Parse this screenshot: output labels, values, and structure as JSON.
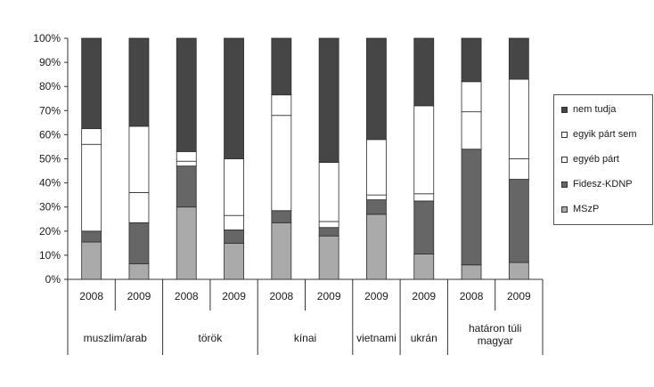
{
  "chart_data": {
    "type": "bar",
    "stacked": true,
    "ylim": [
      0,
      100
    ],
    "yticks": [
      "0%",
      "10%",
      "20%",
      "30%",
      "40%",
      "50%",
      "60%",
      "70%",
      "80%",
      "90%",
      "100%"
    ],
    "grid": false,
    "legend_position": "right",
    "groups": [
      {
        "name": "muszlim/arab",
        "years": [
          "2008",
          "2009"
        ]
      },
      {
        "name": "török",
        "years": [
          "2008",
          "2009"
        ]
      },
      {
        "name": "kínai",
        "years": [
          "2008",
          "2009"
        ]
      },
      {
        "name": "vietnami",
        "years": [
          "2009"
        ]
      },
      {
        "name": "ukrán",
        "years": [
          "2009"
        ]
      },
      {
        "name": "határon túli magyar",
        "years": [
          "2008",
          "2009"
        ]
      }
    ],
    "categories": [
      "2008",
      "2009",
      "2008",
      "2009",
      "2008",
      "2009",
      "2009",
      "2009",
      "2008",
      "2009"
    ],
    "series": [
      {
        "name": "MSzP",
        "color": "#aaaaaa",
        "values": [
          15.5,
          6.5,
          30,
          15,
          23.5,
          18,
          27,
          10.5,
          6,
          7
        ]
      },
      {
        "name": "Fidesz-KDNP",
        "color": "#666666",
        "values": [
          4.5,
          17,
          17,
          5.5,
          5,
          3.5,
          6,
          22,
          48,
          34.5
        ]
      },
      {
        "name": "egyéb párt",
        "color": "#ffffff",
        "values": [
          36,
          12.5,
          2,
          6,
          39.5,
          2.5,
          2,
          3,
          15.5,
          8.5
        ]
      },
      {
        "name": "egyik párt sem",
        "color": "#ffffff",
        "values": [
          6.5,
          27.5,
          4,
          23.5,
          8.5,
          24.5,
          23,
          36.5,
          12.5,
          33
        ]
      },
      {
        "name": "nem tudja",
        "color": "#464646",
        "values": [
          37.5,
          36.5,
          47,
          50,
          23.5,
          51.5,
          42,
          28,
          18,
          17
        ]
      }
    ]
  }
}
